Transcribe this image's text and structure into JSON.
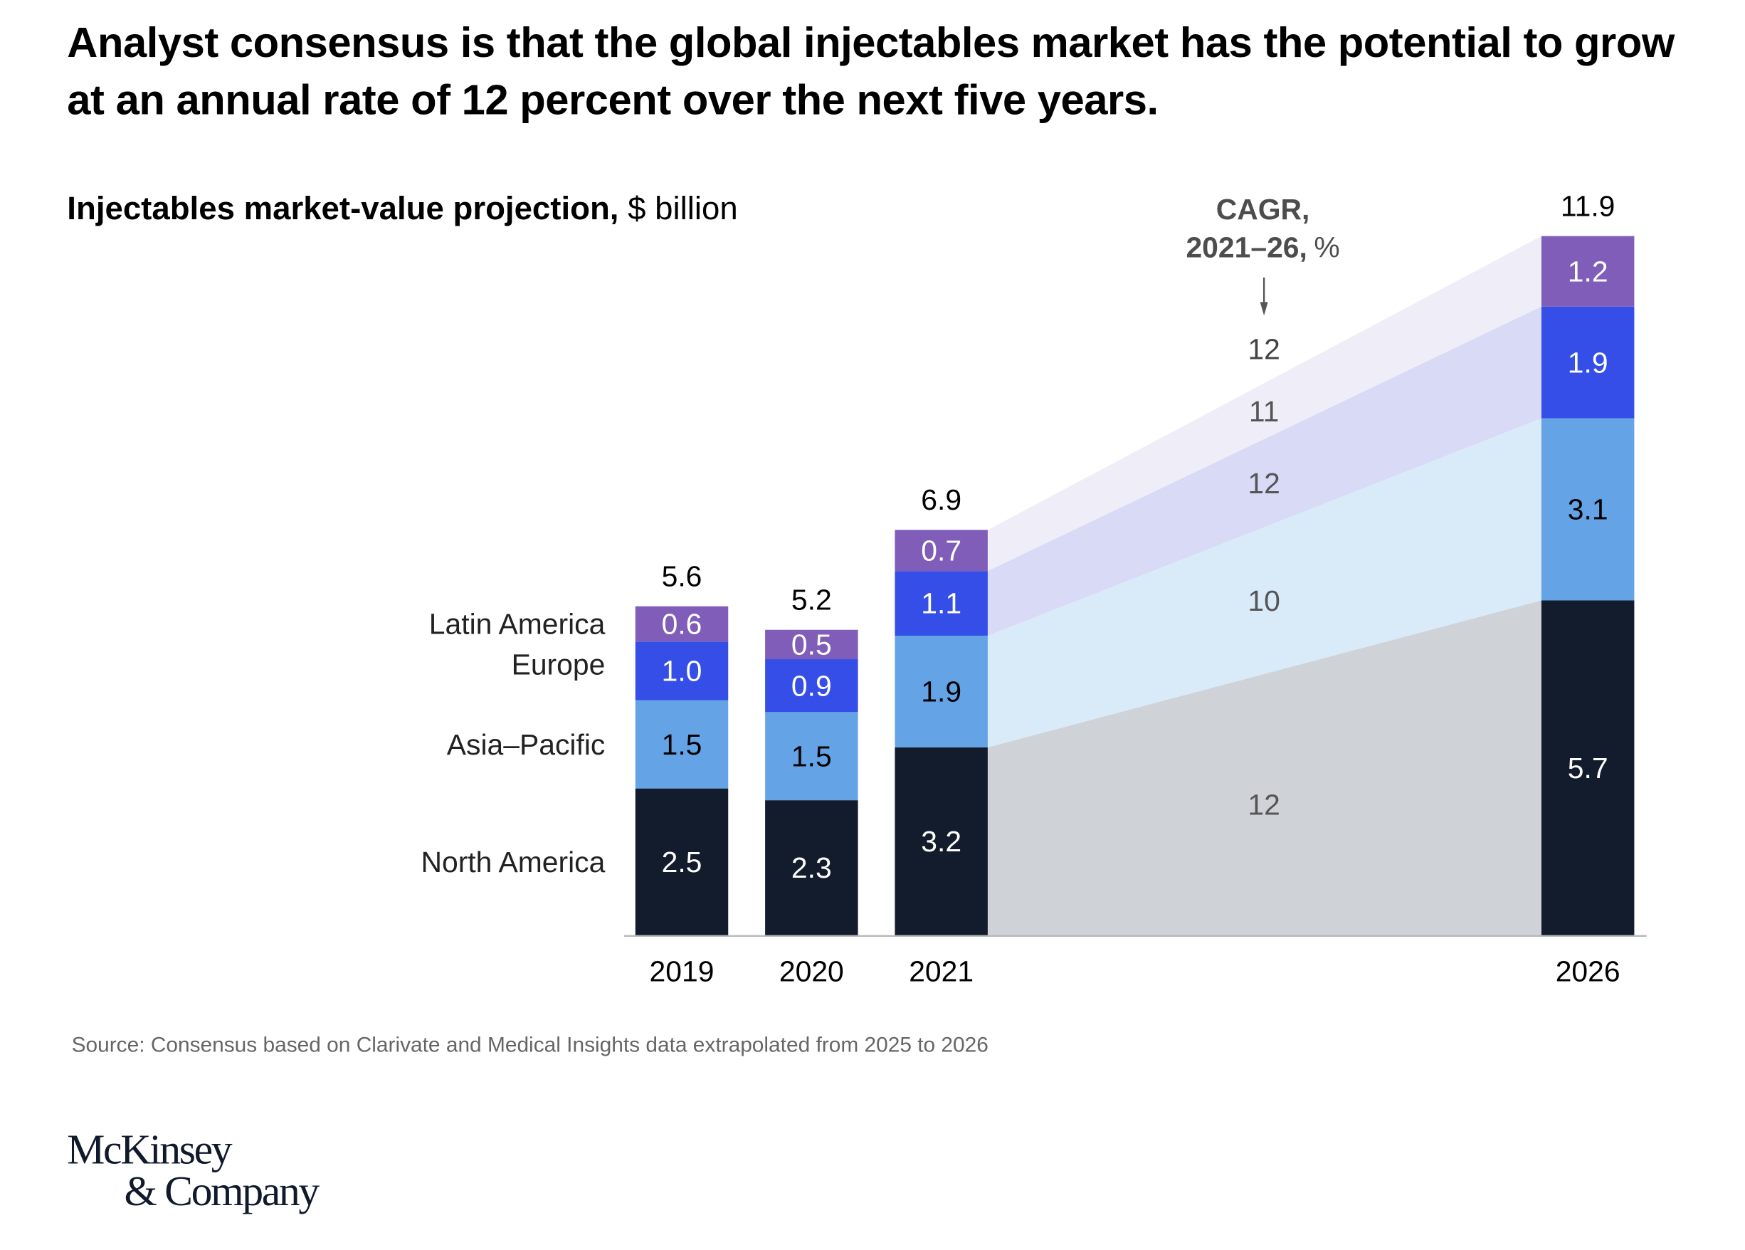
{
  "headline": "Analyst consensus is that the global injectables market has the potential to grow at an annual rate of 12 percent over the next five years.",
  "subtitle_bold": "Injectables market-value projection,",
  "subtitle_unit": "$ billion",
  "source": "Source: Consensus based on Clarivate and Medical Insights data extrapolated from 2025 to 2026",
  "logo_line1": "McKinsey",
  "logo_line2": "& Company",
  "chart_data": {
    "type": "bar",
    "stacked": true,
    "title": "Injectables market-value projection, $ billion",
    "categories": [
      "2019",
      "2020",
      "2021",
      "2026"
    ],
    "series": [
      {
        "name": "North America",
        "color": "#121c2c",
        "label_color": "#ffffff",
        "values": [
          2.5,
          2.3,
          3.2,
          5.7
        ]
      },
      {
        "name": "Asia–Pacific",
        "color": "#64a4e6",
        "label_color": "#000000",
        "values": [
          1.5,
          1.5,
          1.9,
          3.1
        ]
      },
      {
        "name": "Europe",
        "color": "#364ee8",
        "label_color": "#ffffff",
        "values": [
          1.0,
          0.9,
          1.1,
          1.9
        ]
      },
      {
        "name": "Latin America",
        "color": "#7f5db8",
        "label_color": "#ffffff",
        "values": [
          0.6,
          0.5,
          0.7,
          1.2
        ]
      }
    ],
    "totals": [
      5.6,
      5.2,
      6.9,
      11.9
    ],
    "connector_colors": [
      "#cfd3d7",
      "#d9eaf8",
      "#d8daf6",
      "#efedf7"
    ],
    "cagr": {
      "label_line1": "CAGR,",
      "label_line2_bold": "2021–26,",
      "label_line2_unit": "%",
      "values_by_series": [
        12,
        10,
        12,
        11
      ],
      "total": 12
    },
    "ylim": [
      0,
      11.9
    ],
    "xlabel": "",
    "ylabel": "",
    "grid": false,
    "legend": "left-inline"
  }
}
